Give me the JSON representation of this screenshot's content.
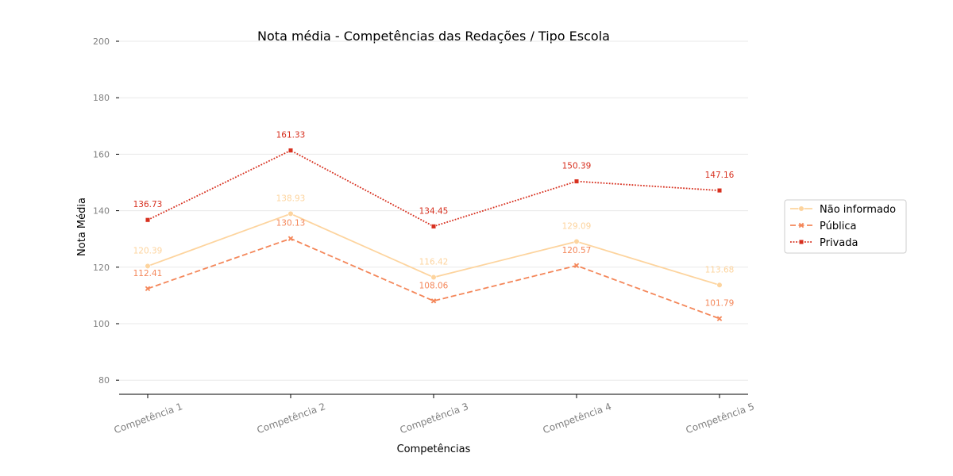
{
  "chart_data": {
    "type": "line",
    "title": "Nota média - Competências das Redações / Tipo Escola",
    "xlabel": "Competências",
    "ylabel": "Nota Média",
    "categories": [
      "Competência 1",
      "Competência 2",
      "Competência 3",
      "Competência 4",
      "Competência 5"
    ],
    "ylim": [
      75,
      200
    ],
    "yticks": [
      80,
      100,
      120,
      140,
      160,
      180,
      200
    ],
    "grid": true,
    "legend_position": "right",
    "series": [
      {
        "name": "Não informado",
        "values": [
          120.39,
          138.93,
          116.42,
          129.09,
          113.68
        ],
        "labels": [
          "120.39",
          "138.93",
          "116.42",
          "129.09",
          "113.68"
        ],
        "color": "#fdd49e",
        "linestyle": "solid",
        "marker": "circle"
      },
      {
        "name": "Pública",
        "values": [
          112.41,
          130.13,
          108.06,
          120.57,
          101.79
        ],
        "labels": [
          "112.41",
          "130.13",
          "108.06",
          "120.57",
          "101.79"
        ],
        "color": "#f4875a",
        "linestyle": "dashed",
        "marker": "x"
      },
      {
        "name": "Privada",
        "values": [
          136.73,
          161.33,
          134.45,
          150.39,
          147.16
        ],
        "labels": [
          "136.73",
          "161.33",
          "134.45",
          "150.39",
          "147.16"
        ],
        "color": "#d7301f",
        "linestyle": "dotted",
        "marker": "square"
      }
    ]
  }
}
